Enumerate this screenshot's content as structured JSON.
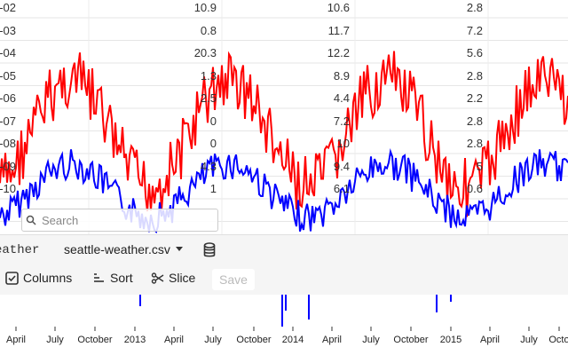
{
  "table": {
    "rows": [
      {
        "date": "1-02",
        "v1": "10.9",
        "v2": "10.6",
        "v3": "2.8"
      },
      {
        "date": "1-03",
        "v1": "0.8",
        "v2": "11.7",
        "v3": "7.2"
      },
      {
        "date": "1-04",
        "v1": "20.3",
        "v2": "12.2",
        "v3": "5.6"
      },
      {
        "date": "1-05",
        "v1": "1.3",
        "v2": "8.9",
        "v3": "2.8"
      },
      {
        "date": "1-06",
        "v1": "2.5",
        "v2": "4.4",
        "v3": "2.2"
      },
      {
        "date": "1-07",
        "v1": "0",
        "v2": "7.2",
        "v3": "2.8"
      },
      {
        "date": "1-08",
        "v1": "0",
        "v2": "10",
        "v3": "2.8"
      },
      {
        "date": "1-09",
        "v1": "4.3",
        "v2": "9.4",
        "v3": "5"
      },
      {
        "date": "1-10",
        "v1": "1",
        "v2": "6.1",
        "v3": "0.6"
      }
    ]
  },
  "search": {
    "placeholder": "Search"
  },
  "toolbar": {
    "dataset_name": "eather",
    "file_name": "seattle-weather.csv",
    "columns_label": "Columns",
    "sort_label": "Sort",
    "slice_label": "Slice",
    "save_label": "Save"
  },
  "chart_data": {
    "type": "line",
    "title": "",
    "xlabel": "",
    "ylabel": "",
    "x_tick_labels": [
      "April",
      "July",
      "October",
      "2013",
      "April",
      "July",
      "October",
      "2014",
      "April",
      "July",
      "October",
      "2015",
      "April",
      "July",
      "Octo"
    ],
    "series": [
      {
        "name": "temp_max",
        "color": "#ff0000"
      },
      {
        "name": "temp_min",
        "color": "#0000ff"
      }
    ]
  },
  "colors": {
    "accent": "#ff0000",
    "secondary": "#0000ff",
    "toolbar_bg": "#f5f5f5"
  }
}
